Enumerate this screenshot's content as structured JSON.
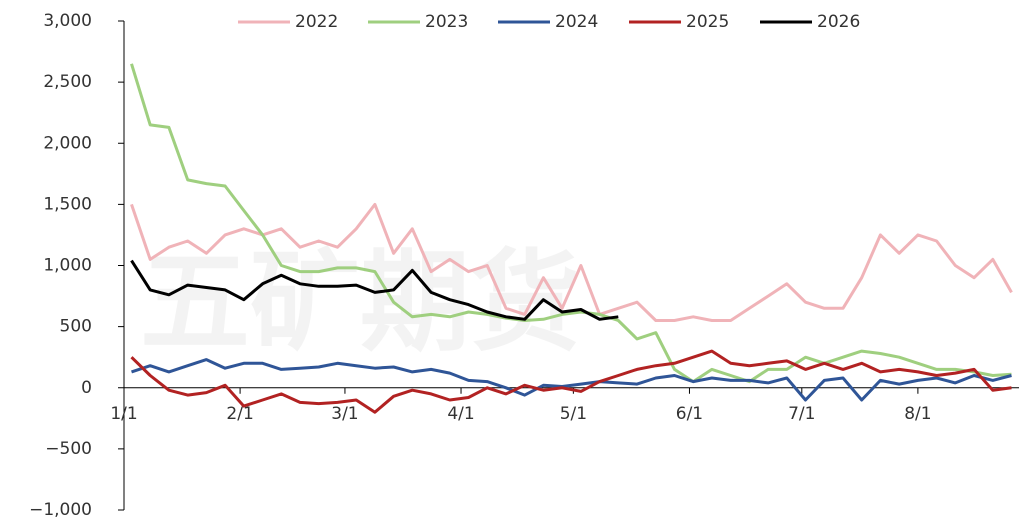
{
  "chart_data": {
    "type": "line",
    "watermark": "五矿期货",
    "x": [
      2,
      7,
      12,
      17,
      22,
      27,
      32,
      37,
      42,
      47,
      52,
      57,
      62,
      67,
      72,
      77,
      82,
      87,
      92,
      97,
      102,
      107,
      112,
      117,
      122,
      127,
      132,
      137,
      142,
      147,
      152,
      157,
      162,
      167,
      172,
      177,
      182,
      187,
      192,
      197,
      202,
      207,
      212,
      217,
      222,
      227,
      232,
      237
    ],
    "xlim": [
      0,
      239
    ],
    "xticks": [
      {
        "value": 0,
        "label": "1/1"
      },
      {
        "value": 31,
        "label": "2/1"
      },
      {
        "value": 59,
        "label": "3/1"
      },
      {
        "value": 90,
        "label": "4/1"
      },
      {
        "value": 120,
        "label": "5/1"
      },
      {
        "value": 151,
        "label": "6/1"
      },
      {
        "value": 181,
        "label": "7/1"
      },
      {
        "value": 212,
        "label": "8/1"
      }
    ],
    "ylim": [
      -1000,
      3000
    ],
    "yticks": [
      {
        "value": -1000,
        "label": "−1,000"
      },
      {
        "value": -500,
        "label": "−500"
      },
      0,
      500,
      {
        "value": 1000,
        "label": "1,000"
      },
      {
        "value": 1500,
        "label": "1,500"
      },
      {
        "value": 2000,
        "label": "2,000"
      },
      {
        "value": 2500,
        "label": "2,500"
      },
      {
        "value": 3000,
        "label": "3,000"
      }
    ],
    "legend": "top",
    "series": [
      {
        "name": "2022",
        "color": "#f0b3b8",
        "values": [
          1500,
          1050,
          1150,
          1200,
          1100,
          1250,
          1300,
          1250,
          1300,
          1150,
          1200,
          1150,
          1300,
          1500,
          1100,
          1300,
          950,
          1050,
          950,
          1000,
          650,
          600,
          900,
          650,
          1000,
          600,
          650,
          700,
          550,
          550,
          580,
          550,
          550,
          650,
          750,
          850,
          700,
          650,
          650,
          900,
          1250,
          1100,
          1250,
          1200,
          1000,
          900,
          1050,
          780
        ]
      },
      {
        "name": "2023",
        "color": "#9fcf7f",
        "values": [
          2650,
          2150,
          2130,
          1700,
          1670,
          1650,
          1450,
          1250,
          1000,
          950,
          950,
          980,
          980,
          950,
          700,
          580,
          600,
          580,
          620,
          600,
          570,
          550,
          560,
          600,
          620,
          600,
          550,
          400,
          450,
          150,
          50,
          150,
          100,
          50,
          150,
          150,
          250,
          200,
          250,
          300,
          280,
          250,
          200,
          150,
          150,
          130,
          100,
          110
        ]
      },
      {
        "name": "2024",
        "color": "#2f5597",
        "values": [
          130,
          180,
          130,
          180,
          230,
          160,
          200,
          200,
          150,
          160,
          170,
          200,
          180,
          160,
          170,
          130,
          150,
          120,
          60,
          50,
          0,
          -60,
          20,
          10,
          30,
          50,
          40,
          30,
          80,
          100,
          50,
          80,
          60,
          60,
          40,
          80,
          -100,
          60,
          80,
          -100,
          60,
          30,
          60,
          80,
          40,
          100,
          60,
          100
        ]
      },
      {
        "name": "2025",
        "color": "#b22222",
        "values": [
          250,
          100,
          -20,
          -60,
          -40,
          20,
          -150,
          -100,
          -50,
          -120,
          -130,
          -120,
          -100,
          -200,
          -70,
          -20,
          -50,
          -100,
          -80,
          0,
          -50,
          20,
          -20,
          0,
          -30,
          50,
          100,
          150,
          180,
          200,
          250,
          300,
          200,
          180,
          200,
          220,
          150,
          200,
          150,
          200,
          130,
          150,
          130,
          100,
          120,
          150,
          -20,
          0
        ]
      },
      {
        "name": "2026",
        "color": "#000000",
        "values": [
          1040,
          800,
          760,
          840,
          820,
          800,
          720,
          850,
          920,
          850,
          830,
          830,
          840,
          780,
          800,
          960,
          780,
          720,
          680,
          620,
          580,
          560,
          720,
          620,
          640,
          560,
          580,
          null,
          null,
          null,
          null,
          null,
          null,
          null,
          null,
          null,
          null,
          null,
          null,
          null,
          null,
          null,
          null,
          null,
          null,
          null,
          null,
          null
        ]
      }
    ]
  }
}
